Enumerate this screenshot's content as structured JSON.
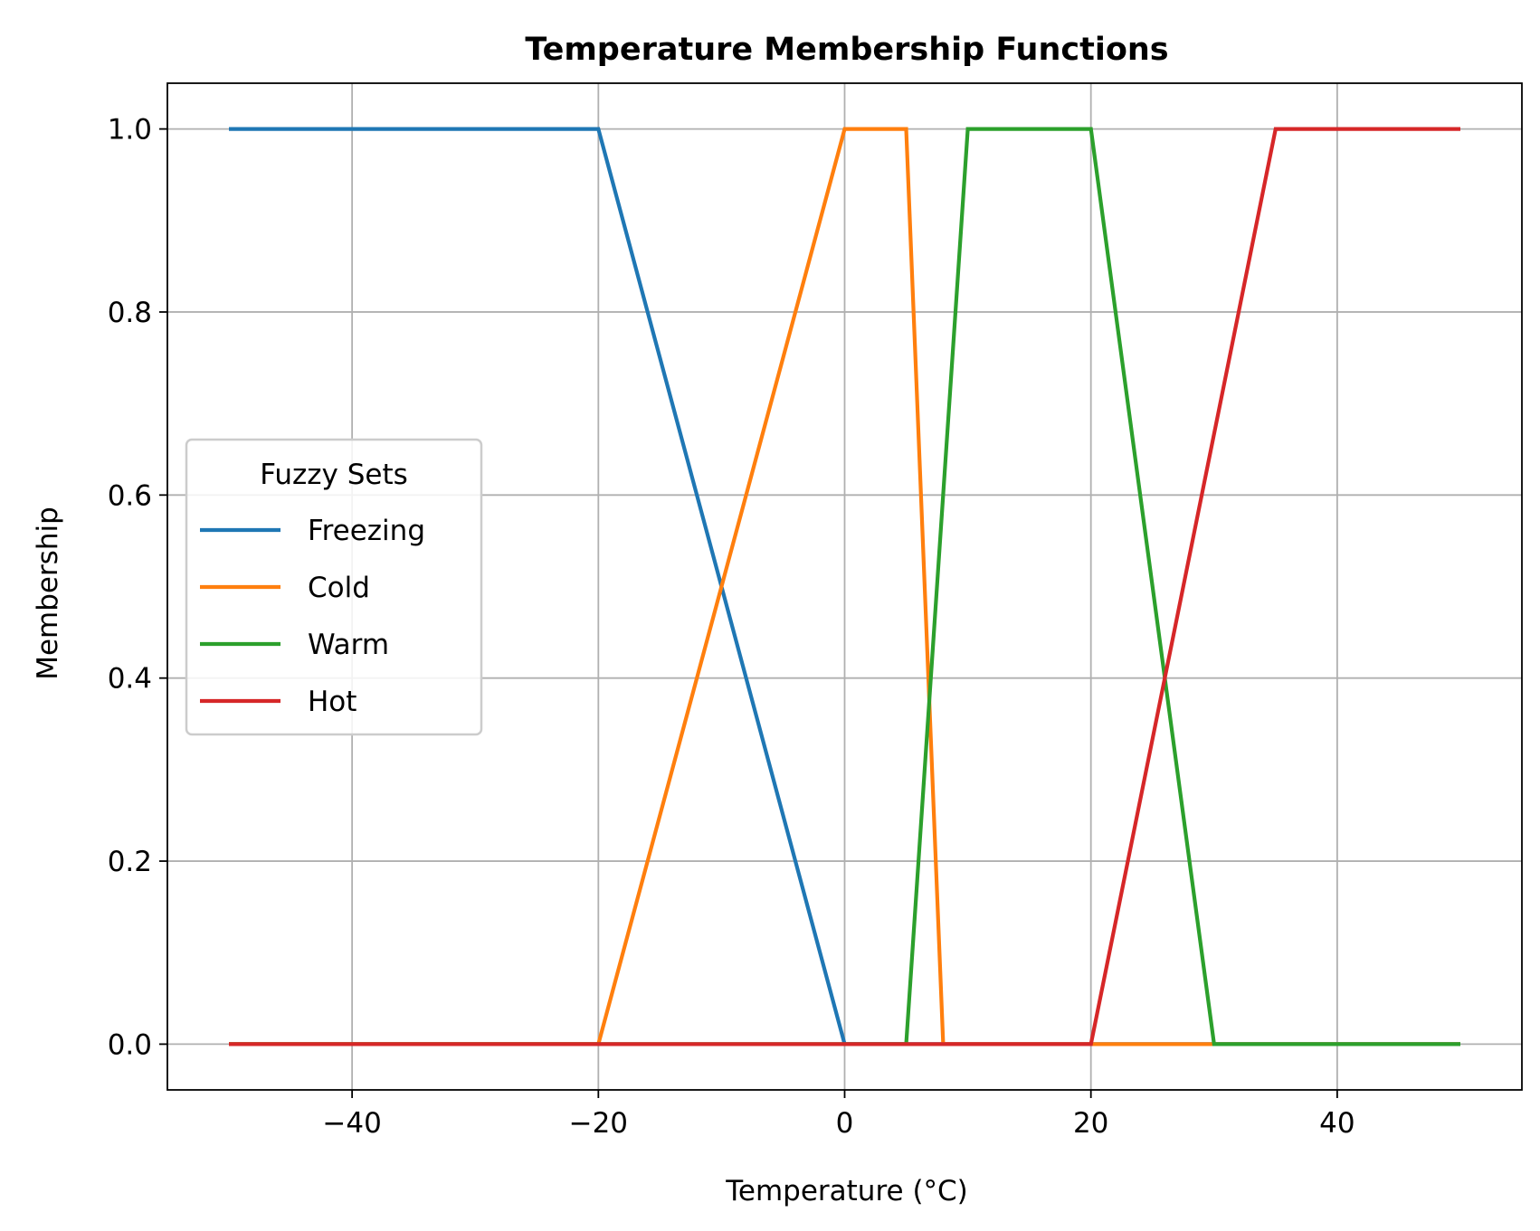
{
  "chart_data": {
    "type": "line",
    "title": "Temperature Membership Functions",
    "xlabel": "Temperature (°C)",
    "ylabel": "Membership",
    "xlim": [
      -55,
      55
    ],
    "ylim": [
      -0.05,
      1.05
    ],
    "xticks": [
      -40,
      -20,
      0,
      20,
      40
    ],
    "xtick_labels": [
      "−40",
      "−20",
      "0",
      "20",
      "40"
    ],
    "yticks": [
      0.0,
      0.2,
      0.4,
      0.6,
      0.8,
      1.0
    ],
    "ytick_labels": [
      "0.0",
      "0.2",
      "0.4",
      "0.6",
      "0.8",
      "1.0"
    ],
    "grid": true,
    "legend": {
      "title": "Fuzzy Sets",
      "placement": "center-left"
    },
    "series": [
      {
        "name": "Freezing",
        "color": "#1f77b4",
        "points": [
          [
            -50,
            1
          ],
          [
            -20,
            1
          ],
          [
            0,
            0
          ],
          [
            50,
            0
          ]
        ]
      },
      {
        "name": "Cold",
        "color": "#ff7f0e",
        "points": [
          [
            -50,
            0
          ],
          [
            -20,
            0
          ],
          [
            0,
            1
          ],
          [
            5,
            1
          ],
          [
            8,
            0
          ],
          [
            50,
            0
          ]
        ]
      },
      {
        "name": "Warm",
        "color": "#2ca02c",
        "points": [
          [
            -50,
            0
          ],
          [
            5,
            0
          ],
          [
            10,
            1
          ],
          [
            20,
            1
          ],
          [
            30,
            0
          ],
          [
            50,
            0
          ]
        ]
      },
      {
        "name": "Hot",
        "color": "#d62728",
        "points": [
          [
            -50,
            0
          ],
          [
            20,
            0
          ],
          [
            35,
            1
          ],
          [
            50,
            1
          ]
        ]
      }
    ]
  }
}
